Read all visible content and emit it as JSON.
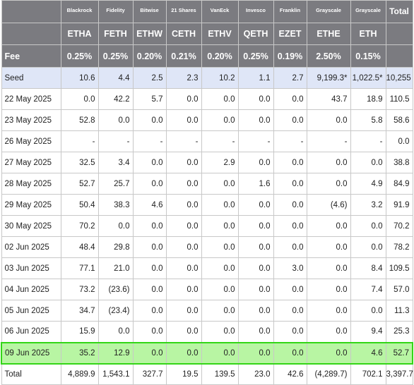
{
  "table": {
    "issuers": [
      "Blackrock",
      "Fidelity",
      "Bitwise",
      "21 Shares",
      "VanEck",
      "Invesco",
      "Franklin",
      "Grayscale",
      "Grayscale"
    ],
    "total_header": "Total",
    "tickers": [
      "ETHA",
      "FETH",
      "ETHW",
      "CETH",
      "ETHV",
      "QETH",
      "EZET",
      "ETHE",
      "ETH"
    ],
    "fee_label": "Fee",
    "fees": [
      "0.25%",
      "0.25%",
      "0.20%",
      "0.21%",
      "0.20%",
      "0.25%",
      "0.19%",
      "2.50%",
      "0.15%"
    ],
    "rows": [
      {
        "label": "Seed",
        "values": [
          "10.6",
          "4.4",
          "2.5",
          "2.3",
          "10.2",
          "1.1",
          "2.7",
          "9,199.3*",
          "1,022.5*"
        ],
        "total": "10,255"
      },
      {
        "label": "22 May 2025",
        "values": [
          "0.0",
          "42.2",
          "5.7",
          "0.0",
          "0.0",
          "0.0",
          "0.0",
          "43.7",
          "18.9"
        ],
        "total": "110.5"
      },
      {
        "label": "23 May 2025",
        "values": [
          "52.8",
          "0.0",
          "0.0",
          "0.0",
          "0.0",
          "0.0",
          "0.0",
          "0.0",
          "5.8"
        ],
        "total": "58.6"
      },
      {
        "label": "26 May 2025",
        "values": [
          "-",
          "-",
          "-",
          "-",
          "-",
          "-",
          "-",
          "-",
          "-"
        ],
        "total": "0.0"
      },
      {
        "label": "27 May 2025",
        "values": [
          "32.5",
          "3.4",
          "0.0",
          "0.0",
          "2.9",
          "0.0",
          "0.0",
          "0.0",
          "0.0"
        ],
        "total": "38.8"
      },
      {
        "label": "28 May 2025",
        "values": [
          "52.7",
          "25.7",
          "0.0",
          "0.0",
          "0.0",
          "1.6",
          "0.0",
          "0.0",
          "4.9"
        ],
        "total": "84.9"
      },
      {
        "label": "29 May 2025",
        "values": [
          "50.4",
          "38.3",
          "4.6",
          "0.0",
          "0.0",
          "0.0",
          "0.0",
          "(4.6)",
          "3.2"
        ],
        "total": "91.9"
      },
      {
        "label": "30 May 2025",
        "values": [
          "70.2",
          "0.0",
          "0.0",
          "0.0",
          "0.0",
          "0.0",
          "0.0",
          "0.0",
          "0.0"
        ],
        "total": "70.2"
      },
      {
        "label": "02 Jun 2025",
        "values": [
          "48.4",
          "29.8",
          "0.0",
          "0.0",
          "0.0",
          "0.0",
          "0.0",
          "0.0",
          "0.0"
        ],
        "total": "78.2"
      },
      {
        "label": "03 Jun 2025",
        "values": [
          "77.1",
          "21.0",
          "0.0",
          "0.0",
          "0.0",
          "0.0",
          "3.0",
          "0.0",
          "8.4"
        ],
        "total": "109.5"
      },
      {
        "label": "04 Jun 2025",
        "values": [
          "73.2",
          "(23.6)",
          "0.0",
          "0.0",
          "0.0",
          "0.0",
          "0.0",
          "0.0",
          "7.4"
        ],
        "total": "57.0"
      },
      {
        "label": "05 Jun 2025",
        "values": [
          "34.7",
          "(23.4)",
          "0.0",
          "0.0",
          "0.0",
          "0.0",
          "0.0",
          "0.0",
          "0.0"
        ],
        "total": "11.3"
      },
      {
        "label": "06 Jun 2025",
        "values": [
          "15.9",
          "0.0",
          "0.0",
          "0.0",
          "0.0",
          "0.0",
          "0.0",
          "0.0",
          "9.4"
        ],
        "total": "25.3"
      },
      {
        "label": "09 Jun 2025",
        "values": [
          "35.2",
          "12.9",
          "0.0",
          "0.0",
          "0.0",
          "0.0",
          "0.0",
          "0.0",
          "4.6"
        ],
        "total": "52.7"
      }
    ],
    "totals_row": {
      "label": "Total",
      "values": [
        "4,889.9",
        "1,543.1",
        "327.7",
        "19.5",
        "139.5",
        "23.0",
        "42.6",
        "(4,289.7)",
        "702.1"
      ],
      "total": "3,397.7"
    }
  },
  "colors": {
    "header_bg": "#7b7b80",
    "seed_bg": "#dfe6f7",
    "highlight_bg": "#b8f5a3",
    "highlight_border": "#33d617",
    "negative": "#e21f1f"
  }
}
